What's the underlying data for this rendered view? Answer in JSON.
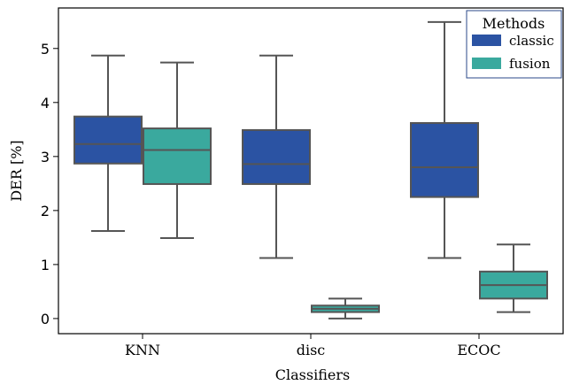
{
  "chart_data": {
    "type": "box",
    "xlabel": "Classifiers",
    "ylabel": "DER [%]",
    "ylim": [
      -0.28,
      5.75
    ],
    "yticks": [
      0,
      1,
      2,
      3,
      4,
      5
    ],
    "categories": [
      "KNN",
      "disc",
      "ECOC"
    ],
    "legend": {
      "title": "Methods",
      "position": "top-right"
    },
    "series": [
      {
        "name": "classic",
        "color": "#2b53a3",
        "boxes": [
          {
            "category": "KNN",
            "whisker_low": 1.62,
            "q1": 2.87,
            "median": 3.23,
            "q3": 3.74,
            "whisker_high": 4.87
          },
          {
            "category": "disc",
            "whisker_low": 1.12,
            "q1": 2.49,
            "median": 2.86,
            "q3": 3.49,
            "whisker_high": 4.87
          },
          {
            "category": "ECOC",
            "whisker_low": 1.12,
            "q1": 2.25,
            "median": 2.8,
            "q3": 3.62,
            "whisker_high": 5.49
          }
        ]
      },
      {
        "name": "fusion",
        "color": "#3aa99e",
        "boxes": [
          {
            "category": "KNN",
            "whisker_low": 1.49,
            "q1": 2.49,
            "median": 3.12,
            "q3": 3.52,
            "whisker_high": 4.74
          },
          {
            "category": "disc",
            "whisker_low": 0.0,
            "q1": 0.12,
            "median": 0.18,
            "q3": 0.24,
            "whisker_high": 0.37
          },
          {
            "category": "ECOC",
            "whisker_low": 0.12,
            "q1": 0.37,
            "median": 0.62,
            "q3": 0.87,
            "whisker_high": 1.37
          }
        ]
      }
    ]
  }
}
